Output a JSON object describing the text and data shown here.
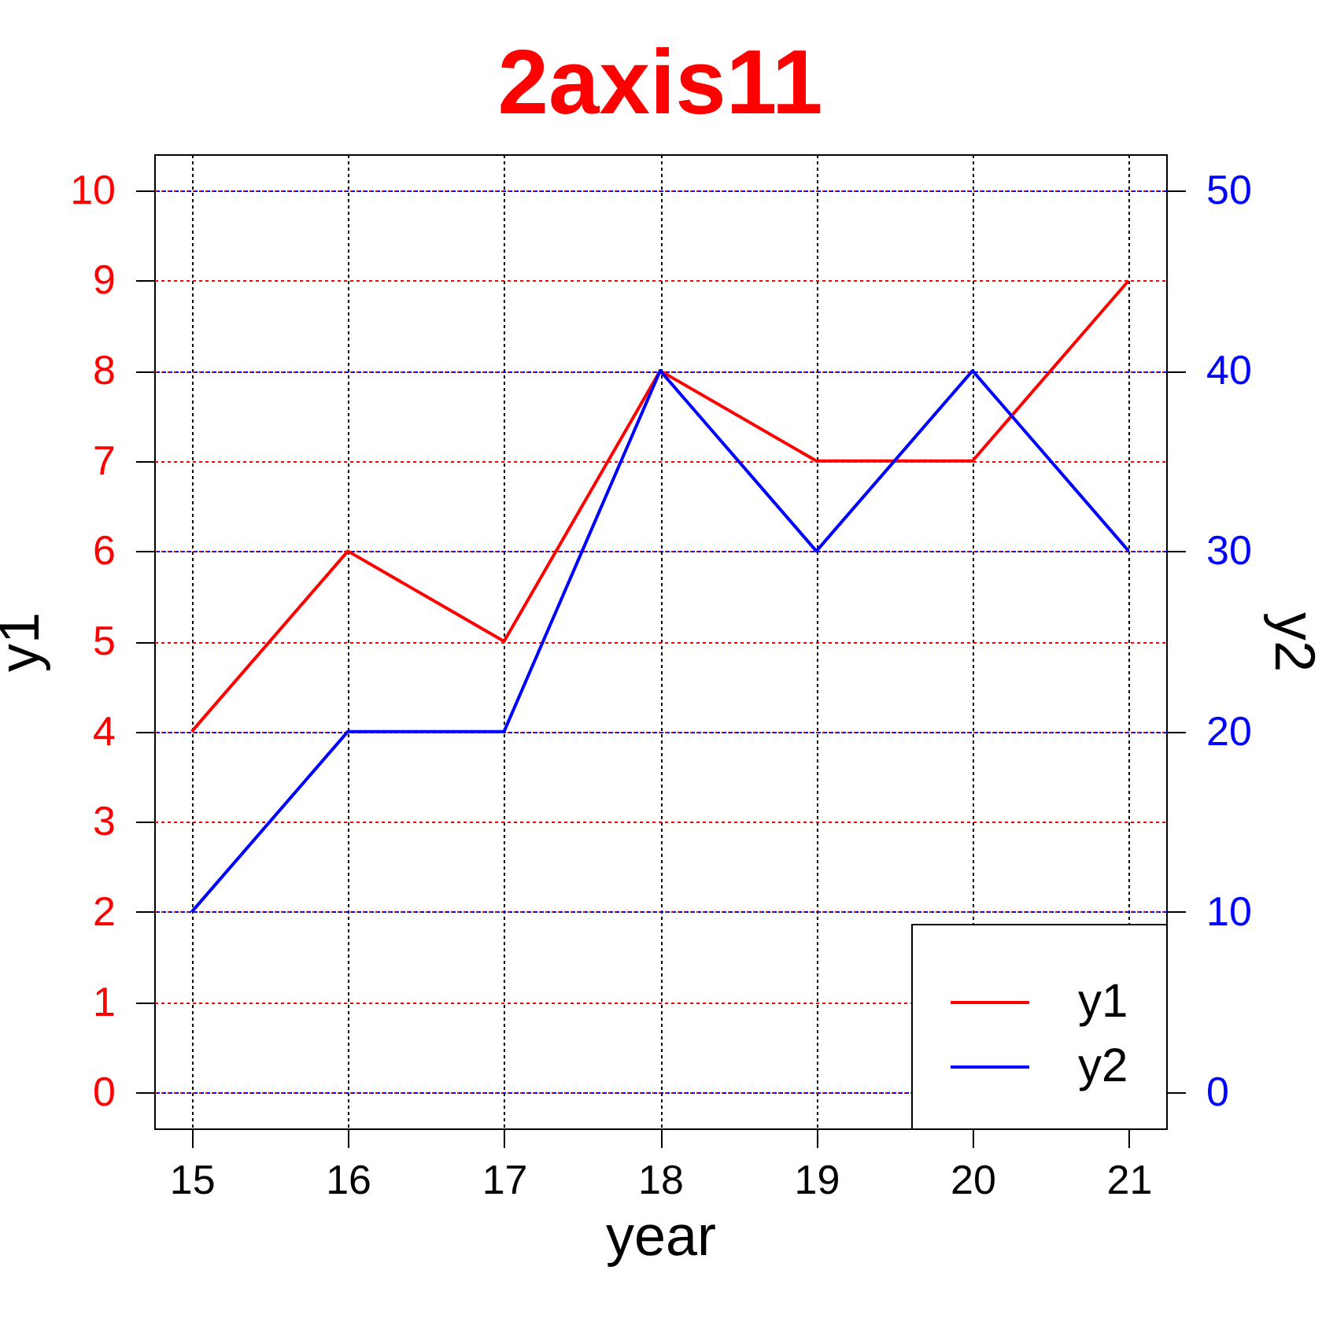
{
  "chart_data": {
    "type": "line",
    "title": "2axis11",
    "xlabel": "year",
    "ylabel": "y1",
    "y2label": "y2",
    "x": [
      15,
      16,
      17,
      18,
      19,
      20,
      21
    ],
    "xlim": [
      14.76,
      21.24
    ],
    "xticks": [
      15,
      16,
      17,
      18,
      19,
      20,
      21
    ],
    "ylim": [
      -0.4,
      10.4
    ],
    "yticks": [
      0,
      1,
      2,
      3,
      4,
      5,
      6,
      7,
      8,
      9,
      10
    ],
    "y2lim": [
      -2,
      52
    ],
    "y2ticks": [
      0,
      10,
      20,
      30,
      40,
      50
    ],
    "grid": true,
    "legend": "bottom right",
    "line_style": "solid",
    "series": [
      {
        "name": "y1",
        "color": "#ff0000",
        "values": [
          4,
          6,
          5,
          8,
          7,
          7,
          9
        ]
      },
      {
        "name": "y2",
        "color": "#0000ff",
        "axis": "y2",
        "values": [
          10,
          20,
          20,
          40,
          30,
          40,
          30
        ]
      }
    ]
  }
}
